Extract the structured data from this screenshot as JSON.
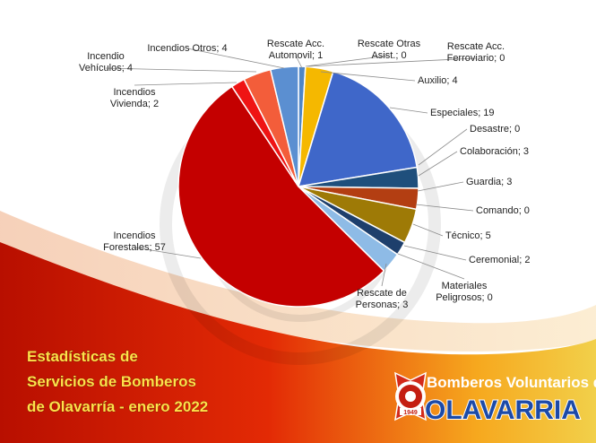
{
  "chart_data": {
    "type": "pie",
    "slices": [
      {
        "label": "Rescate Acc. Automovil",
        "value": 1,
        "color": "#4f86c6"
      },
      {
        "label": "Rescate Otras Asist.",
        "value": 0,
        "color": "#9fb4d6"
      },
      {
        "label": "Rescate Acc. Ferroviario",
        "value": 0,
        "color": "#8a8a8a"
      },
      {
        "label": "Auxilio",
        "value": 4,
        "color": "#f5b800"
      },
      {
        "label": "Especiales",
        "value": 19,
        "color": "#3f67c9"
      },
      {
        "label": "Desastre",
        "value": 0,
        "color": "#2d6e3e"
      },
      {
        "label": "Colaboración",
        "value": 3,
        "color": "#1f4f7c"
      },
      {
        "label": "Guardia",
        "value": 3,
        "color": "#b33e12"
      },
      {
        "label": "Comando",
        "value": 0,
        "color": "#444444"
      },
      {
        "label": "Técnico",
        "value": 5,
        "color": "#9e7a06"
      },
      {
        "label": "Ceremonial",
        "value": 2,
        "color": "#1e3f6c"
      },
      {
        "label": "Materiales Peligrosos",
        "value": 0,
        "color": "#6b2a0c"
      },
      {
        "label": "Rescate de Personas",
        "value": 3,
        "color": "#8ebbe6"
      },
      {
        "label": "Incendios Forestales",
        "value": 57,
        "color": "#c40000"
      },
      {
        "label": "Incendios Vivienda",
        "value": 2,
        "color": "#ef1414"
      },
      {
        "label": "Incendio Vehículos",
        "value": 4,
        "color": "#f35d3a"
      },
      {
        "label": "Incendios Otros",
        "value": 4,
        "color": "#5b8fd1"
      }
    ],
    "data_labels": [
      {
        "lines": [
          "Rescate Acc.",
          "Automovil; 1"
        ]
      },
      {
        "lines": [
          "Rescate Otras",
          "Asist.; 0"
        ]
      },
      {
        "lines": [
          "Rescate Acc.",
          "Ferroviario; 0"
        ]
      },
      {
        "lines": [
          "Auxilio; 4"
        ]
      },
      {
        "lines": [
          "Especiales; 19"
        ]
      },
      {
        "lines": [
          "Desastre; 0"
        ]
      },
      {
        "lines": [
          "Colaboración; 3"
        ]
      },
      {
        "lines": [
          "Guardia; 3"
        ]
      },
      {
        "lines": [
          "Comando; 0"
        ]
      },
      {
        "lines": [
          "Técnico; 5"
        ]
      },
      {
        "lines": [
          "Ceremonial; 2"
        ]
      },
      {
        "lines": [
          "Materiales",
          "Peligrosos; 0"
        ]
      },
      {
        "lines": [
          "Rescate de",
          "Personas; 3"
        ]
      },
      {
        "lines": [
          "Incendios",
          "Forestales; 57"
        ]
      },
      {
        "lines": [
          "Incendios",
          "Vivienda; 2"
        ]
      },
      {
        "lines": [
          "Incendio",
          "Vehículos; 4"
        ]
      },
      {
        "lines": [
          "Incendios Otros; 4"
        ]
      }
    ]
  },
  "headline": {
    "lines": [
      "Estadísticas de",
      "Servicios de Bomberos",
      "de Olavarría - enero 2022"
    ]
  },
  "brand": {
    "top": "Bomberos Voluntarios de",
    "name": "OLAVARRIA",
    "logo_year": "1949"
  },
  "colors": {
    "swoosh_red": "#d81e05",
    "swoosh_orange": "#f7a21b",
    "label_leader": "#8c8c8c"
  }
}
